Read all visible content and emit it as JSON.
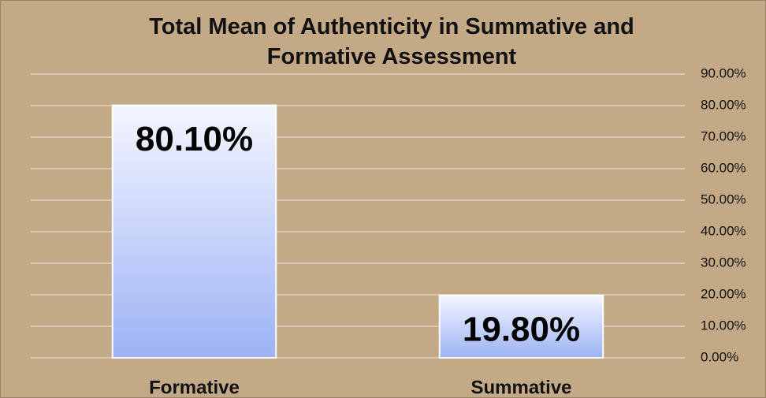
{
  "chart_data": {
    "type": "bar",
    "title": "Total Mean of Authenticity in Summative and Formative Assessment",
    "categories": [
      "Formative",
      "Summative"
    ],
    "values": [
      80.1,
      19.8
    ],
    "value_labels": [
      "80.10%",
      "19.80%"
    ],
    "ylim": [
      0,
      90
    ],
    "yticks": [
      {
        "value": 0,
        "label": "0.00%"
      },
      {
        "value": 10,
        "label": "10.00%"
      },
      {
        "value": 20,
        "label": "20.00%"
      },
      {
        "value": 30,
        "label": "30.00%"
      },
      {
        "value": 40,
        "label": "40.00%"
      },
      {
        "value": 50,
        "label": "50.00%"
      },
      {
        "value": 60,
        "label": "60.00%"
      },
      {
        "value": 70,
        "label": "70.00%"
      },
      {
        "value": 80,
        "label": "80.00%"
      },
      {
        "value": 90,
        "label": "90.00%"
      }
    ],
    "grid": true,
    "y_axis_side": "right"
  }
}
